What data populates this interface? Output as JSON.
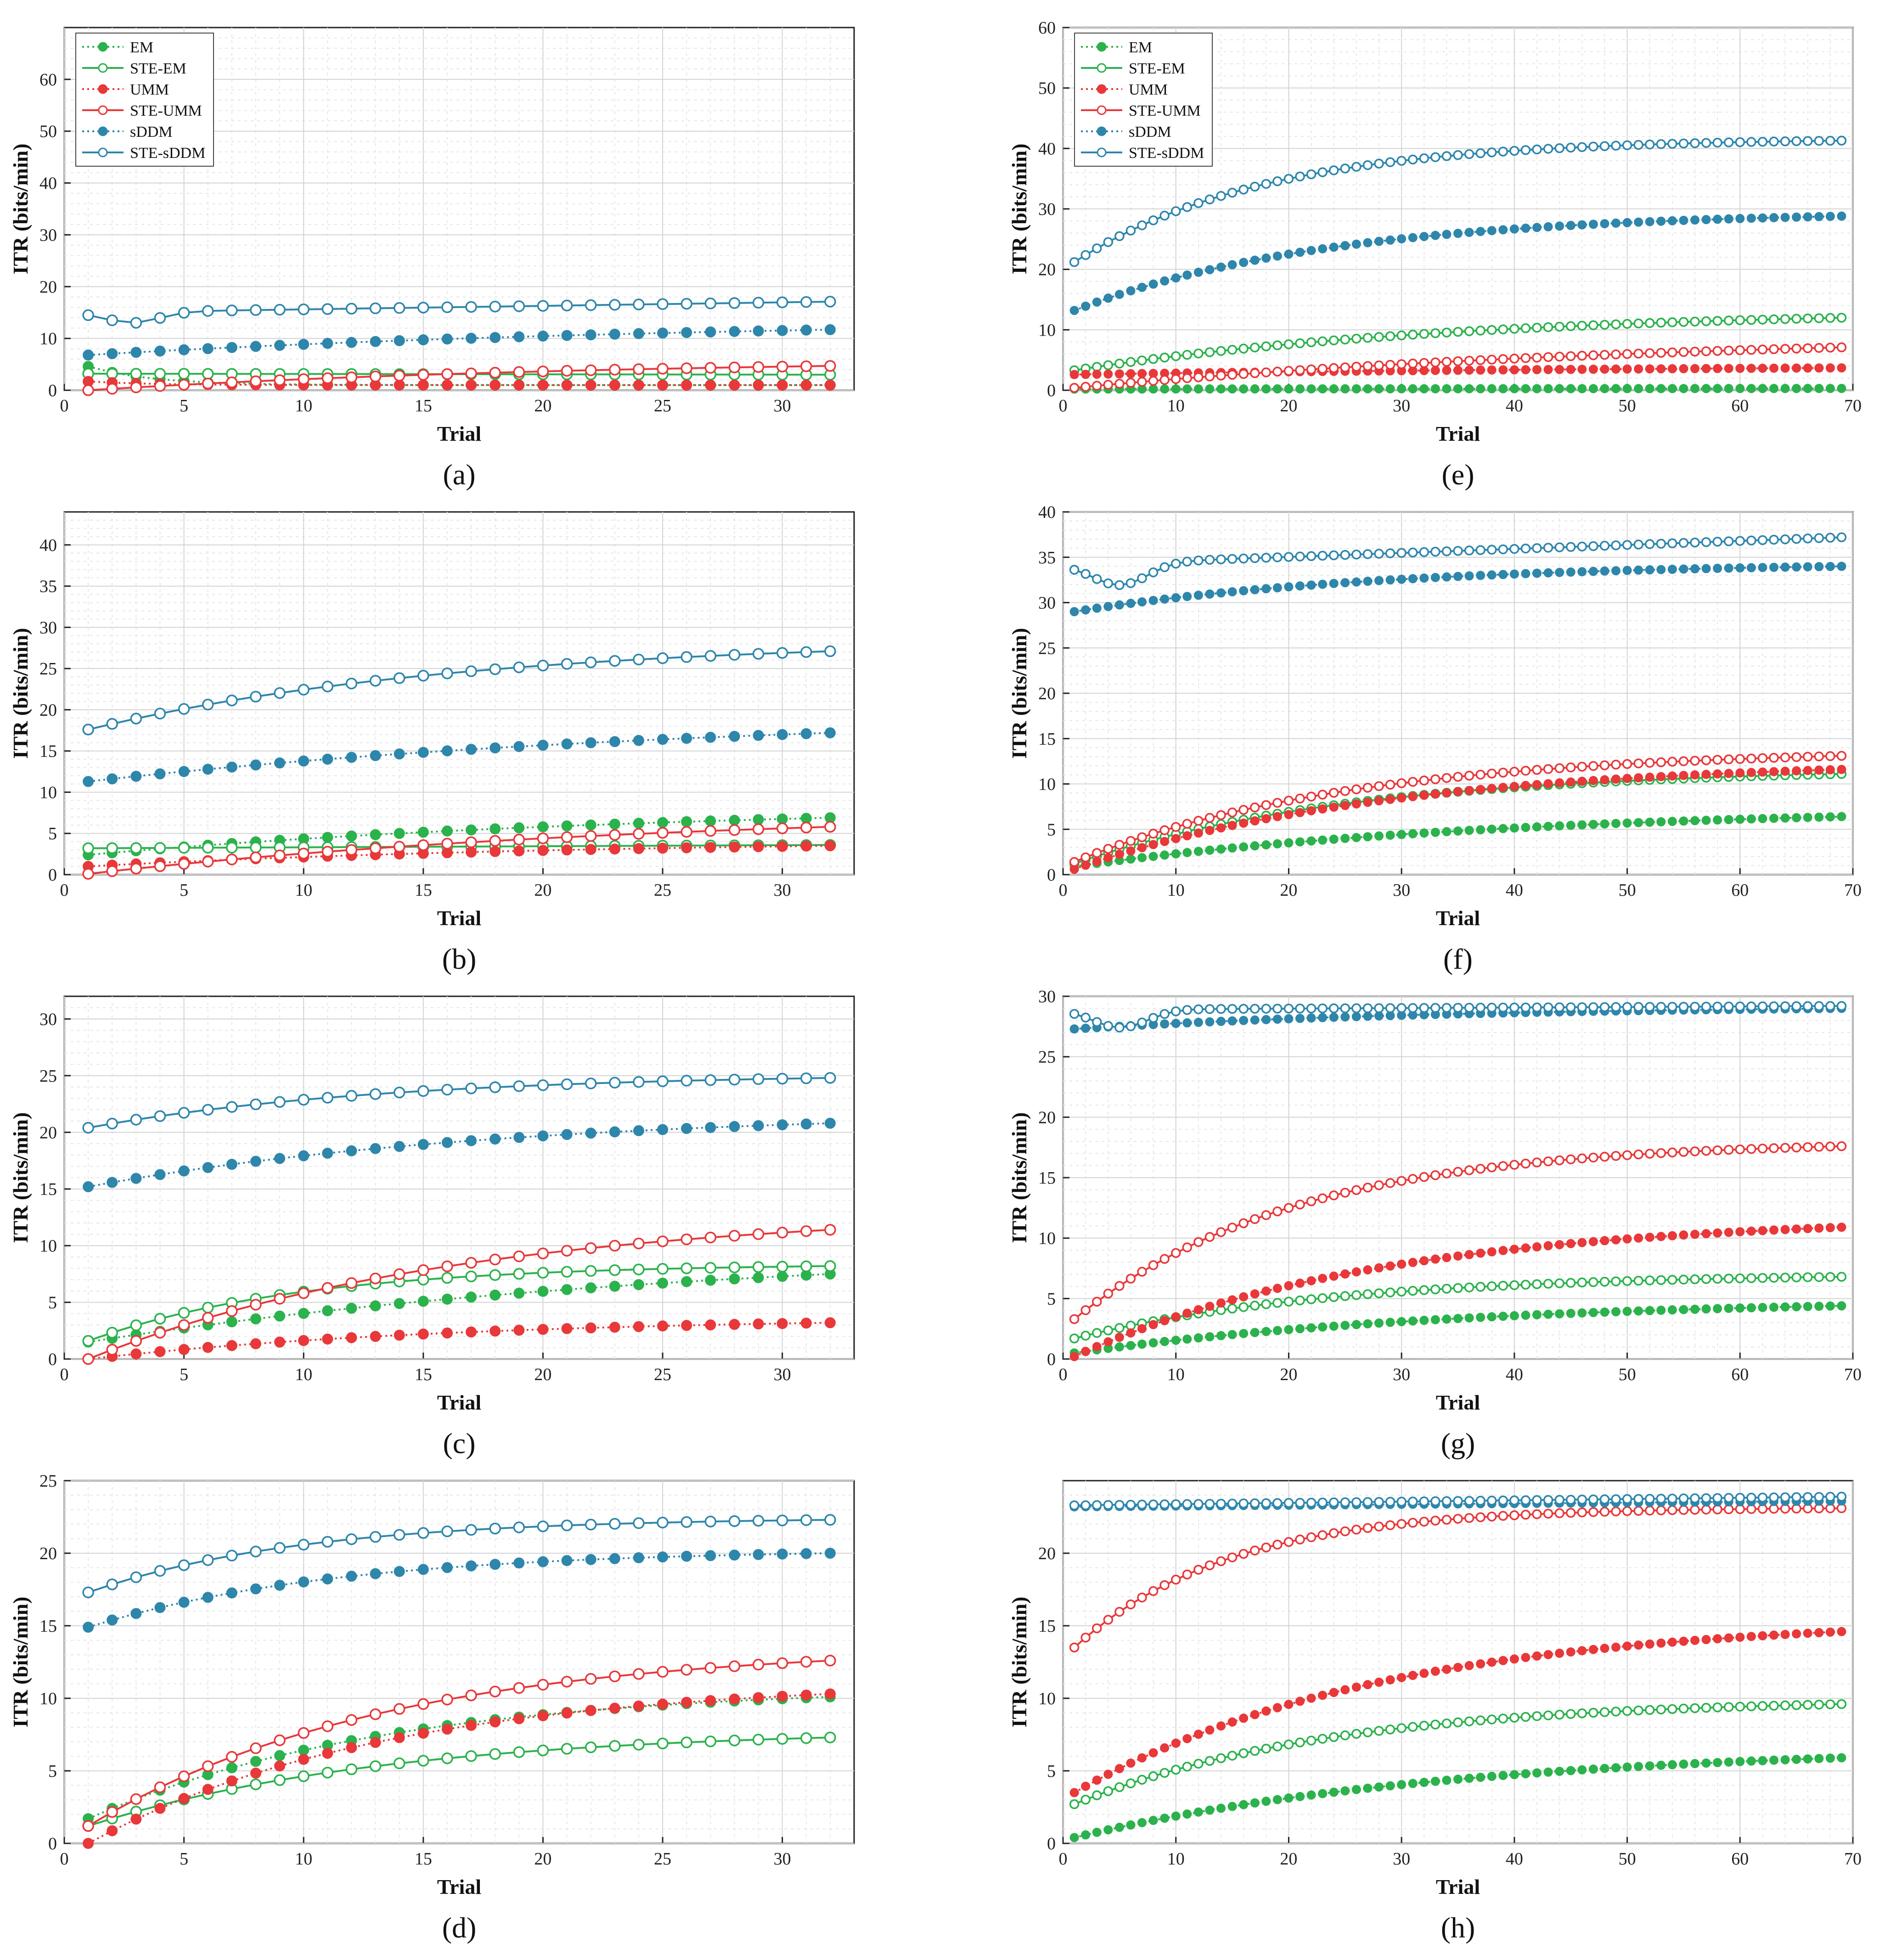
{
  "figure": {
    "colors": {
      "EM": "#2bb24c",
      "UMM": "#e8383a",
      "sDDM": "#2e86ab"
    },
    "legend": {
      "entries": [
        "EM",
        "STE-EM",
        "UMM",
        "STE-UMM",
        "sDDM",
        "STE-sDDM"
      ]
    }
  },
  "chart_data": [
    {
      "id": "a",
      "caption": "(a)",
      "type": "line",
      "xlabel": "Trial",
      "ylabel": "ITR (bits/min)",
      "xlim": [
        0,
        33
      ],
      "ylim": [
        0,
        70
      ],
      "xticks": [
        0,
        5,
        10,
        15,
        20,
        25,
        30
      ],
      "yticks": [
        0,
        10,
        20,
        30,
        40,
        50,
        60
      ],
      "show_legend": true,
      "grid": true,
      "series": [
        {
          "name": "EM",
          "n": 32,
          "start": 4.6,
          "end": 1.0,
          "kind": "decay",
          "rate": 2
        },
        {
          "name": "STE-EM",
          "n": 32,
          "start": 3.2,
          "end": 3.0,
          "kind": "flat",
          "rate": 1
        },
        {
          "name": "UMM",
          "n": 32,
          "start": 1.7,
          "end": 1.0,
          "kind": "decay",
          "rate": 2
        },
        {
          "name": "STE-UMM",
          "n": 32,
          "start": 0.0,
          "end": 4.7,
          "kind": "rise",
          "rate": 1.5
        },
        {
          "name": "sDDM",
          "n": 32,
          "start": 6.8,
          "end": 11.7,
          "kind": "rise",
          "rate": 1.2
        },
        {
          "name": "STE-sDDM",
          "n": 32,
          "start": 15.0,
          "end": 17.1,
          "kind": "dip",
          "rate": 1
        }
      ]
    },
    {
      "id": "b",
      "caption": "(b)",
      "type": "line",
      "xlabel": "Trial",
      "ylabel": "ITR (bits/min)",
      "xlim": [
        0,
        33
      ],
      "ylim": [
        0,
        44
      ],
      "xticks": [
        0,
        5,
        10,
        15,
        20,
        25,
        30
      ],
      "yticks": [
        0,
        5,
        10,
        15,
        20,
        25,
        30,
        35,
        40
      ],
      "show_legend": false,
      "grid": true,
      "series": [
        {
          "name": "EM",
          "n": 32,
          "start": 2.4,
          "end": 6.9,
          "kind": "rise",
          "rate": 1.3
        },
        {
          "name": "STE-EM",
          "n": 32,
          "start": 3.2,
          "end": 3.6,
          "kind": "flat",
          "rate": 1
        },
        {
          "name": "UMM",
          "n": 32,
          "start": 1.0,
          "end": 3.5,
          "kind": "rise",
          "rate": 1.5
        },
        {
          "name": "STE-UMM",
          "n": 32,
          "start": 0.1,
          "end": 5.8,
          "kind": "rise",
          "rate": 1.3
        },
        {
          "name": "sDDM",
          "n": 32,
          "start": 11.3,
          "end": 17.2,
          "kind": "rise",
          "rate": 1.2
        },
        {
          "name": "STE-sDDM",
          "n": 32,
          "start": 17.6,
          "end": 27.1,
          "kind": "rise",
          "rate": 2
        }
      ]
    },
    {
      "id": "c",
      "caption": "(c)",
      "type": "line",
      "xlabel": "Trial",
      "ylabel": "ITR (bits/min)",
      "xlim": [
        0,
        33
      ],
      "ylim": [
        0,
        32
      ],
      "xticks": [
        0,
        5,
        10,
        15,
        20,
        25,
        30
      ],
      "yticks": [
        0,
        5,
        10,
        15,
        20,
        25,
        30
      ],
      "show_legend": false,
      "grid": true,
      "series": [
        {
          "name": "EM",
          "n": 32,
          "start": 1.5,
          "end": 7.5,
          "kind": "rise",
          "rate": 1.2
        },
        {
          "name": "STE-EM",
          "n": 32,
          "start": 1.6,
          "end": 8.2,
          "kind": "rise",
          "rate": 3.5
        },
        {
          "name": "UMM",
          "n": 32,
          "start": 0.0,
          "end": 3.2,
          "kind": "rise",
          "rate": 2
        },
        {
          "name": "STE-UMM",
          "n": 32,
          "start": 0.0,
          "end": 11.4,
          "kind": "rise",
          "rate": 2
        },
        {
          "name": "sDDM",
          "n": 32,
          "start": 15.2,
          "end": 20.8,
          "kind": "rise",
          "rate": 1.8
        },
        {
          "name": "STE-sDDM",
          "n": 32,
          "start": 20.4,
          "end": 24.8,
          "kind": "rise",
          "rate": 2.5
        }
      ]
    },
    {
      "id": "d",
      "caption": "(d)",
      "type": "line",
      "xlabel": "Trial",
      "ylabel": "ITR (bits/min)",
      "xlim": [
        0,
        33
      ],
      "ylim": [
        0,
        25
      ],
      "xticks": [
        0,
        5,
        10,
        15,
        20,
        25,
        30
      ],
      "yticks": [
        0,
        5,
        10,
        15,
        20,
        25
      ],
      "show_legend": false,
      "grid": true,
      "series": [
        {
          "name": "EM",
          "n": 32,
          "start": 1.7,
          "end": 10.1,
          "kind": "rise",
          "rate": 2.5
        },
        {
          "name": "STE-EM",
          "n": 32,
          "start": 1.2,
          "end": 7.3,
          "kind": "rise",
          "rate": 2.5
        },
        {
          "name": "UMM",
          "n": 32,
          "start": 0.0,
          "end": 10.3,
          "kind": "rise",
          "rate": 2.5
        },
        {
          "name": "STE-UMM",
          "n": 32,
          "start": 1.2,
          "end": 12.6,
          "kind": "rise",
          "rate": 2.5
        },
        {
          "name": "sDDM",
          "n": 32,
          "start": 14.9,
          "end": 20.0,
          "kind": "rise",
          "rate": 3
        },
        {
          "name": "STE-sDDM",
          "n": 32,
          "start": 17.3,
          "end": 22.3,
          "kind": "rise",
          "rate": 3.5
        }
      ]
    },
    {
      "id": "e",
      "caption": "(e)",
      "type": "line",
      "xlabel": "Trial",
      "ylabel": "ITR (bits/min)",
      "xlim": [
        0,
        70
      ],
      "ylim": [
        0,
        60
      ],
      "xticks": [
        0,
        10,
        20,
        30,
        40,
        50,
        60,
        70
      ],
      "yticks": [
        0,
        10,
        20,
        30,
        40,
        50,
        60
      ],
      "show_legend": true,
      "grid": true,
      "series": [
        {
          "name": "EM",
          "n": 69,
          "start": 0.2,
          "end": 0.3,
          "kind": "flat",
          "rate": 1
        },
        {
          "name": "STE-EM",
          "n": 69,
          "start": 3.3,
          "end": 12.0,
          "kind": "rise",
          "rate": 2
        },
        {
          "name": "UMM",
          "n": 69,
          "start": 2.6,
          "end": 3.7,
          "kind": "rise",
          "rate": 1.2
        },
        {
          "name": "STE-UMM",
          "n": 69,
          "start": 0.4,
          "end": 7.1,
          "kind": "rise",
          "rate": 1.3
        },
        {
          "name": "sDDM",
          "n": 69,
          "start": 13.2,
          "end": 28.8,
          "kind": "rise",
          "rate": 3
        },
        {
          "name": "STE-sDDM",
          "n": 69,
          "start": 21.2,
          "end": 41.3,
          "kind": "rise",
          "rate": 4
        }
      ]
    },
    {
      "id": "f",
      "caption": "(f)",
      "type": "line",
      "xlabel": "Trial",
      "ylabel": "ITR (bits/min)",
      "xlim": [
        0,
        70
      ],
      "ylim": [
        0,
        40
      ],
      "xticks": [
        0,
        10,
        20,
        30,
        40,
        50,
        60,
        70
      ],
      "yticks": [
        0,
        5,
        10,
        15,
        20,
        25,
        30,
        35,
        40
      ],
      "show_legend": false,
      "grid": true,
      "series": [
        {
          "name": "EM",
          "n": 69,
          "start": 0.9,
          "end": 6.4,
          "kind": "rise",
          "rate": 1.8
        },
        {
          "name": "STE-EM",
          "n": 69,
          "start": 1.2,
          "end": 11.1,
          "kind": "rise",
          "rate": 2.8
        },
        {
          "name": "UMM",
          "n": 69,
          "start": 0.6,
          "end": 11.6,
          "kind": "rise",
          "rate": 2.5
        },
        {
          "name": "STE-UMM",
          "n": 69,
          "start": 1.4,
          "end": 13.1,
          "kind": "rise",
          "rate": 2.8
        },
        {
          "name": "sDDM",
          "n": 69,
          "start": 29.0,
          "end": 34.0,
          "kind": "rise",
          "rate": 2.5
        },
        {
          "name": "STE-sDDM",
          "n": 69,
          "start": 34.2,
          "end": 37.2,
          "kind": "dip",
          "rate": 4
        }
      ]
    },
    {
      "id": "g",
      "caption": "(g)",
      "type": "line",
      "xlabel": "Trial",
      "ylabel": "ITR (bits/min)",
      "xlim": [
        0,
        70
      ],
      "ylim": [
        0,
        30
      ],
      "xticks": [
        0,
        10,
        20,
        30,
        40,
        50,
        60,
        70
      ],
      "yticks": [
        0,
        5,
        10,
        15,
        20,
        25,
        30
      ],
      "show_legend": false,
      "grid": true,
      "series": [
        {
          "name": "EM",
          "n": 69,
          "start": 0.5,
          "end": 4.4,
          "kind": "rise",
          "rate": 2
        },
        {
          "name": "STE-EM",
          "n": 69,
          "start": 1.7,
          "end": 6.8,
          "kind": "rise",
          "rate": 3
        },
        {
          "name": "UMM",
          "n": 69,
          "start": 0.2,
          "end": 10.9,
          "kind": "rise",
          "rate": 2.5
        },
        {
          "name": "STE-UMM",
          "n": 69,
          "start": 3.3,
          "end": 17.6,
          "kind": "rise",
          "rate": 3.5
        },
        {
          "name": "sDDM",
          "n": 69,
          "start": 27.3,
          "end": 29.0,
          "kind": "rise",
          "rate": 2
        },
        {
          "name": "STE-sDDM",
          "n": 69,
          "start": 28.9,
          "end": 29.2,
          "kind": "dip",
          "rate": 3
        }
      ]
    },
    {
      "id": "h",
      "caption": "(h)",
      "type": "line",
      "xlabel": "Trial",
      "ylabel": "ITR (bits/min)",
      "xlim": [
        0,
        70
      ],
      "ylim": [
        0,
        25
      ],
      "xticks": [
        0,
        10,
        20,
        30,
        40,
        50,
        60,
        70
      ],
      "yticks": [
        0,
        5,
        10,
        15,
        20
      ],
      "show_legend": false,
      "grid": true,
      "series": [
        {
          "name": "EM",
          "n": 69,
          "start": 0.4,
          "end": 5.9,
          "kind": "rise",
          "rate": 2
        },
        {
          "name": "STE-EM",
          "n": 69,
          "start": 2.7,
          "end": 9.6,
          "kind": "rise",
          "rate": 3
        },
        {
          "name": "UMM",
          "n": 69,
          "start": 3.5,
          "end": 14.6,
          "kind": "rise",
          "rate": 2.5
        },
        {
          "name": "STE-UMM",
          "n": 69,
          "start": 13.5,
          "end": 23.1,
          "kind": "rise",
          "rate": 5
        },
        {
          "name": "sDDM",
          "n": 69,
          "start": 23.2,
          "end": 23.6,
          "kind": "flat",
          "rate": 1
        },
        {
          "name": "STE-sDDM",
          "n": 69,
          "start": 23.3,
          "end": 23.9,
          "kind": "flat",
          "rate": 1
        }
      ]
    }
  ]
}
